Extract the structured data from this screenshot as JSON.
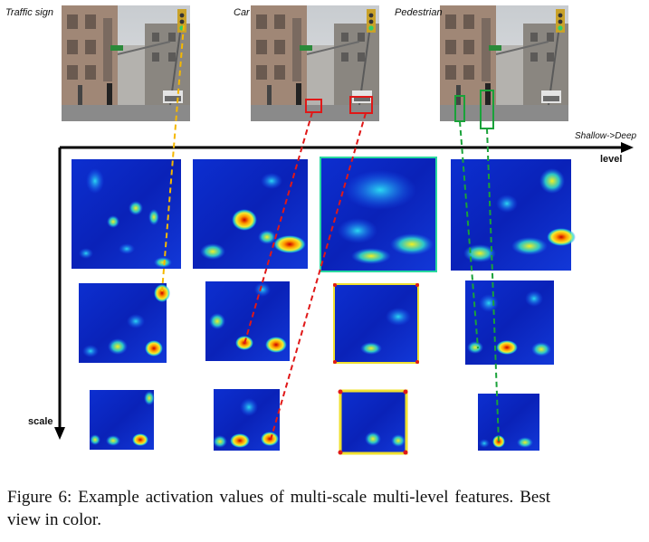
{
  "photos": [
    {
      "label": "Traffic sign"
    },
    {
      "label": "Car"
    },
    {
      "label": "Pedestrian"
    }
  ],
  "axes": {
    "x_note": "Shallow->Deep",
    "x_label": "level",
    "y_label": "scale"
  },
  "caption": "Figure 6: Example activation values of multi-scale multi-level features. Best view in color.",
  "colors": {
    "traffic_sign_link": "#f5b800",
    "car_link": "#e01818",
    "pedestrian_link": "#1aa23a",
    "heatmap_low": "#0a1fb0",
    "heatmap_high": "#ff2a00"
  }
}
